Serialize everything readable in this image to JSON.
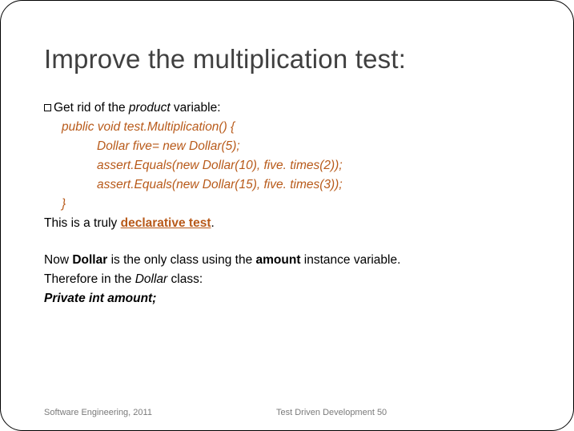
{
  "title": "Improve the multiplication test:",
  "bullet_prefix": "Get rid of the ",
  "bullet_emph": "product",
  "bullet_suffix": " variable:",
  "code": {
    "l1": "public void test.Multiplication() {",
    "l2": "Dollar five= new Dollar(5);",
    "l3": "assert.Equals(new Dollar(10), five. times(2));",
    "l4": "assert.Equals(new Dollar(15), five. times(3));",
    "l5": "}"
  },
  "truly_prefix": "This is a truly ",
  "truly_emph": "declarative test",
  "truly_suffix": ".",
  "p1_a": "Now ",
  "p1_b": "Dollar",
  "p1_c": " is the only class using the ",
  "p1_d": "amount",
  "p1_e": " instance variable.",
  "p2_a": "Therefore in the ",
  "p2_b": "Dollar",
  "p2_c": " class:",
  "p3": "Private int amount;",
  "footer_left": "Software Engineering,   2011",
  "footer_right": "Test Driven Development   50",
  "colors": {
    "code": "#b85a1a",
    "title": "#404040",
    "text": "#000000",
    "footer": "#7a7a7a",
    "background": "#ffffff",
    "border": "#000000"
  },
  "fontsizes": {
    "title": 33,
    "body": 15.5,
    "footer": 11
  }
}
